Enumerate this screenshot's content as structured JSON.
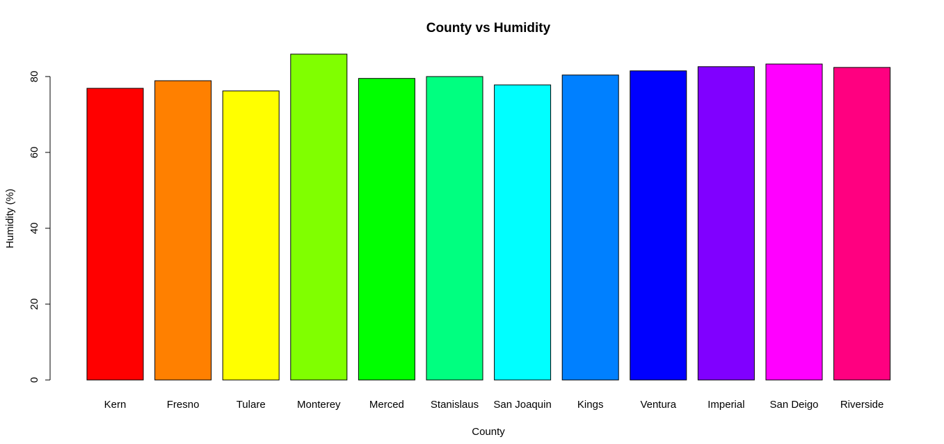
{
  "chart_data": {
    "type": "bar",
    "title": "County vs Humidity",
    "xlabel": "County",
    "ylabel": "Humidity (%)",
    "ylim": [
      0,
      80
    ],
    "yticks": [
      "0",
      "20",
      "40",
      "60",
      "80"
    ],
    "grid": false,
    "categories": [
      "Kern",
      "Fresno",
      "Tulare",
      "Monterey",
      "Merced",
      "Stanislaus",
      "San Joaquin",
      "Kings",
      "Ventura",
      "Imperial",
      "San Deigo",
      "Riverside"
    ],
    "values": [
      76.9,
      78.9,
      76.2,
      85.9,
      79.5,
      80.0,
      77.8,
      80.4,
      81.5,
      82.6,
      83.3,
      82.4
    ],
    "colors": [
      "#ff0000",
      "#ff8000",
      "#ffff00",
      "#80ff00",
      "#00ff00",
      "#00ff80",
      "#00ffff",
      "#0080ff",
      "#0000ff",
      "#8000ff",
      "#ff00ff",
      "#ff0080"
    ]
  }
}
